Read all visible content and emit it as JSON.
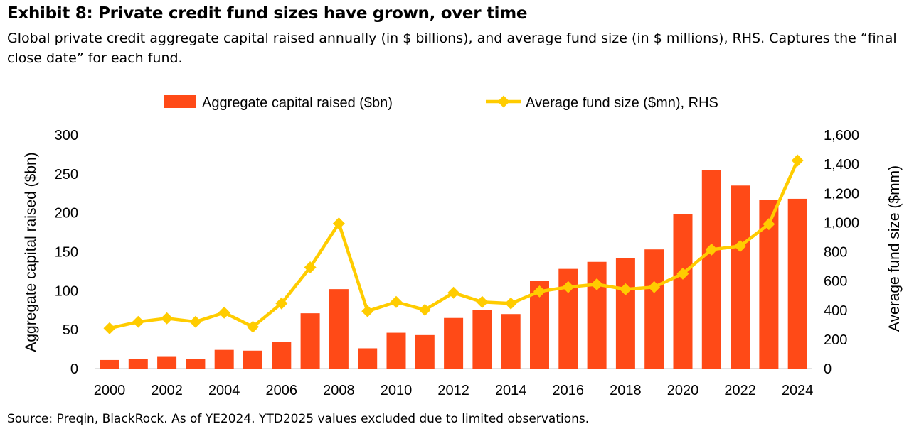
{
  "chart_data": {
    "type": "bar",
    "title": "Exhibit 8: Private credit fund sizes have grown, over time",
    "subtitle": "Global private credit aggregate capital raised annually (in $ billions), and average fund size (in $ millions), RHS. Captures the “final close date” for each fund.",
    "source": "Source: Preqin, BlackRock. As of YE2024. YTD2025 values excluded due to limited observations.",
    "categories": [
      "2000",
      "2001",
      "2002",
      "2003",
      "2004",
      "2005",
      "2006",
      "2007",
      "2008",
      "2009",
      "2010",
      "2011",
      "2012",
      "2013",
      "2014",
      "2015",
      "2016",
      "2017",
      "2018",
      "2019",
      "2020",
      "2021",
      "2022",
      "2023",
      "2024"
    ],
    "x_tick_labels": [
      "2000",
      "2002",
      "2004",
      "2006",
      "2008",
      "2010",
      "2012",
      "2014",
      "2016",
      "2018",
      "2020",
      "2022",
      "2024"
    ],
    "series": [
      {
        "name": "Aggregate capital raised ($bn)",
        "type": "bar",
        "axis": "left",
        "color": "#ff4a17",
        "values": [
          11,
          12,
          15,
          12,
          24,
          23,
          34,
          71,
          102,
          26,
          46,
          43,
          65,
          75,
          70,
          113,
          128,
          137,
          142,
          153,
          198,
          255,
          235,
          217,
          218
        ]
      },
      {
        "name": "Average fund size ($mn), RHS",
        "type": "line",
        "axis": "right",
        "color": "#ffcc00",
        "values": [
          276,
          320,
          344,
          320,
          383,
          286,
          446,
          693,
          994,
          393,
          456,
          402,
          519,
          456,
          446,
          528,
          558,
          577,
          543,
          558,
          650,
          815,
          839,
          989,
          1425
        ]
      }
    ],
    "ylabel": "Aggregate capital raised ($bn)",
    "ylim": [
      0,
      300
    ],
    "yticks": [
      "0",
      "50",
      "100",
      "150",
      "200",
      "250",
      "300"
    ],
    "y2label": "Average fund size ($mm)",
    "y2lim": [
      0,
      1600
    ],
    "y2ticks": [
      "0",
      "200",
      "400",
      "600",
      "800",
      "1,000",
      "1,200",
      "1,400",
      "1,600"
    ],
    "grid": false,
    "legend": "top"
  }
}
